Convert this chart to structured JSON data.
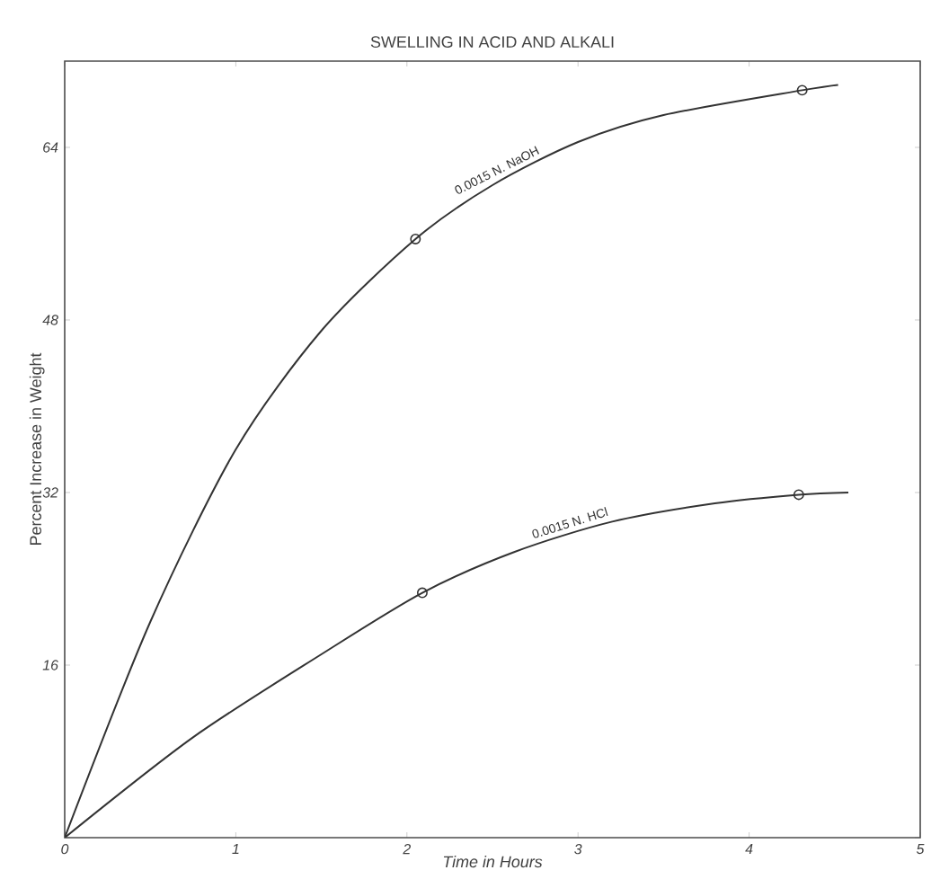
{
  "chart_data": {
    "type": "line",
    "title": "SWELLING IN ACID AND ALKALI",
    "xlabel": "Time in Hours",
    "ylabel": "Percent Increase in Weight",
    "xlim": [
      0,
      5
    ],
    "ylim": [
      0,
      72
    ],
    "xticks": [
      0,
      1,
      2,
      3,
      4,
      5
    ],
    "yticks": [
      {
        "value": 0,
        "label": null
      },
      16,
      32,
      48,
      64
    ],
    "grid": false,
    "series": [
      {
        "name": "0.0015 N. NaOH",
        "color": "#333333",
        "x": [
          0,
          0.5,
          1,
          1.5,
          2.05,
          2.5,
          3,
          3.5,
          4.31,
          4.52
        ],
        "values": [
          0,
          20,
          36,
          47,
          55.5,
          60.5,
          64.5,
          67,
          69.3,
          69.8
        ]
      },
      {
        "name": "0.0015 N. HCl",
        "color": "#333333",
        "x": [
          0,
          0.75,
          1.5,
          2.09,
          2.63,
          3.2,
          3.8,
          4.29,
          4.58
        ],
        "values": [
          0,
          9.3,
          17,
          22.7,
          26.5,
          29.3,
          31,
          31.8,
          32
        ]
      },
      {
        "type": "scatter",
        "marker": "circle",
        "color": "#333333",
        "x": [
          2.05,
          4.31
        ],
        "values": [
          55.5,
          69.3
        ]
      },
      {
        "type": "scatter",
        "marker": "circle",
        "color": "#333333",
        "x": [
          2.09,
          4.29
        ],
        "values": [
          22.7,
          31.8
        ]
      }
    ]
  }
}
